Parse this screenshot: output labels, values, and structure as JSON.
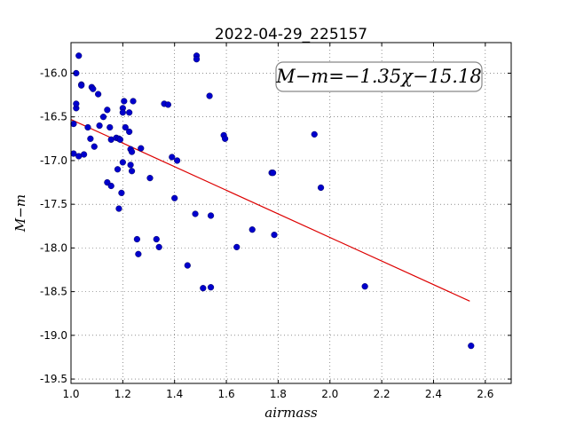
{
  "chart_data": {
    "type": "scatter",
    "title": "2022-04-29_225157",
    "xlabel": "airmass",
    "ylabel": "M−m",
    "xlim": [
      1.0,
      2.7
    ],
    "ylim": [
      -19.55,
      -15.65
    ],
    "y_inverted": true,
    "grid": true,
    "x_ticks": [
      "1.0",
      "1.2",
      "1.4",
      "1.6",
      "1.8",
      "2.0",
      "2.2",
      "2.4",
      "2.6"
    ],
    "x_tick_values": [
      1.0,
      1.2,
      1.4,
      1.6,
      1.8,
      2.0,
      2.2,
      2.4,
      2.6
    ],
    "y_ticks": [
      "-16.0",
      "-16.5",
      "-17.0",
      "-17.5",
      "-18.0",
      "-18.5",
      "-19.0",
      "-19.5"
    ],
    "y_tick_values": [
      -16.0,
      -16.5,
      -17.0,
      -17.5,
      -18.0,
      -18.5,
      -19.0,
      -19.5
    ],
    "annotation": "M−m=−1.35χ−15.18",
    "fit": {
      "slope": -1.35,
      "intercept": -15.18,
      "x_range": [
        1.0,
        2.54
      ],
      "color": "#dd0000"
    },
    "point_color": "#0000cc",
    "points": [
      [
        1.01,
        -16.58
      ],
      [
        1.01,
        -16.92
      ],
      [
        1.02,
        -16.0
      ],
      [
        1.02,
        -16.4
      ],
      [
        1.02,
        -16.35
      ],
      [
        1.03,
        -15.8
      ],
      [
        1.03,
        -16.95
      ],
      [
        1.04,
        -16.13
      ],
      [
        1.04,
        -16.14
      ],
      [
        1.05,
        -16.93
      ],
      [
        1.065,
        -16.62
      ],
      [
        1.075,
        -16.75
      ],
      [
        1.08,
        -16.16
      ],
      [
        1.085,
        -16.18
      ],
      [
        1.09,
        -16.84
      ],
      [
        1.105,
        -16.24
      ],
      [
        1.11,
        -16.6
      ],
      [
        1.125,
        -16.5
      ],
      [
        1.14,
        -16.42
      ],
      [
        1.14,
        -17.25
      ],
      [
        1.15,
        -16.62
      ],
      [
        1.155,
        -16.76
      ],
      [
        1.155,
        -17.29
      ],
      [
        1.175,
        -16.74
      ],
      [
        1.18,
        -17.1
      ],
      [
        1.185,
        -16.75
      ],
      [
        1.185,
        -17.55
      ],
      [
        1.19,
        -16.76
      ],
      [
        1.195,
        -17.37
      ],
      [
        1.2,
        -17.02
      ],
      [
        1.2,
        -16.4
      ],
      [
        1.2,
        -16.45
      ],
      [
        1.205,
        -16.32
      ],
      [
        1.21,
        -16.62
      ],
      [
        1.225,
        -16.45
      ],
      [
        1.225,
        -16.67
      ],
      [
        1.23,
        -16.87
      ],
      [
        1.23,
        -17.05
      ],
      [
        1.235,
        -16.9
      ],
      [
        1.235,
        -17.12
      ],
      [
        1.24,
        -16.32
      ],
      [
        1.255,
        -17.9
      ],
      [
        1.26,
        -18.07
      ],
      [
        1.27,
        -16.86
      ],
      [
        1.305,
        -17.2
      ],
      [
        1.33,
        -17.9
      ],
      [
        1.34,
        -17.99
      ],
      [
        1.36,
        -16.35
      ],
      [
        1.375,
        -16.36
      ],
      [
        1.39,
        -16.96
      ],
      [
        1.4,
        -17.43
      ],
      [
        1.41,
        -17.0
      ],
      [
        1.45,
        -18.2
      ],
      [
        1.48,
        -17.61
      ],
      [
        1.485,
        -15.8
      ],
      [
        1.485,
        -15.84
      ],
      [
        1.51,
        -18.46
      ],
      [
        1.535,
        -16.26
      ],
      [
        1.54,
        -17.63
      ],
      [
        1.54,
        -18.45
      ],
      [
        1.59,
        -16.71
      ],
      [
        1.595,
        -16.75
      ],
      [
        1.64,
        -17.99
      ],
      [
        1.7,
        -17.79
      ],
      [
        1.775,
        -17.14
      ],
      [
        1.78,
        -17.14
      ],
      [
        1.785,
        -17.85
      ],
      [
        1.94,
        -16.7
      ],
      [
        1.965,
        -17.31
      ],
      [
        2.135,
        -18.44
      ],
      [
        2.545,
        -19.12
      ]
    ]
  }
}
